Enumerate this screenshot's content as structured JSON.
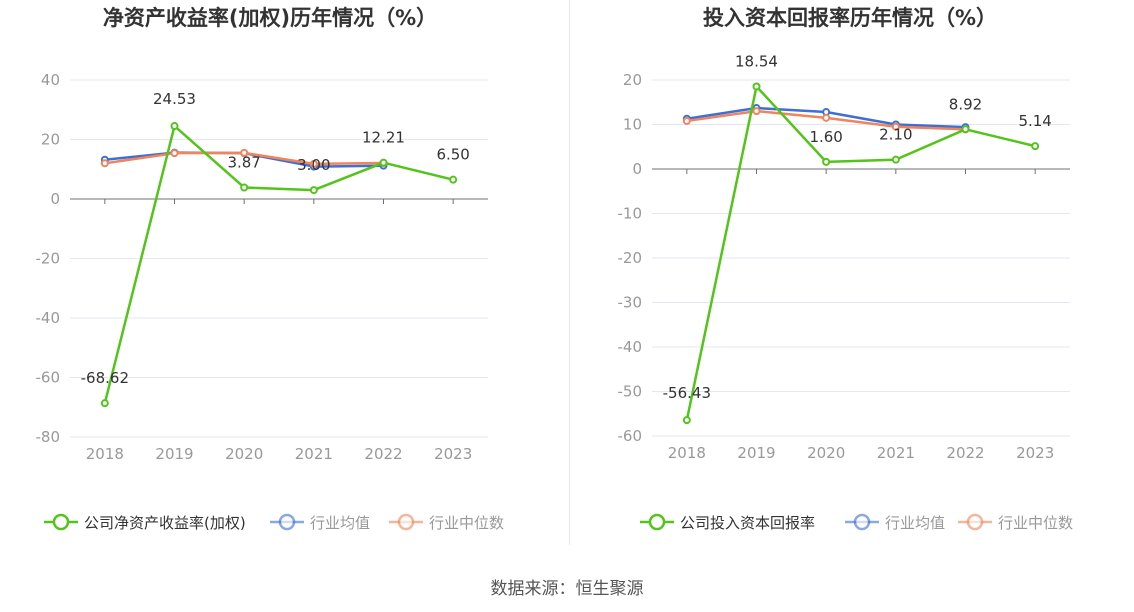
{
  "chart_data": [
    {
      "type": "line",
      "title": "净资产收益率(加权)历年情况（%）",
      "categories": [
        "2018",
        "2019",
        "2020",
        "2021",
        "2022",
        "2023"
      ],
      "y_ticks": [
        "40",
        "20",
        "0",
        "-20",
        "-40",
        "-60",
        "-80"
      ],
      "ylim": [
        -80,
        40
      ],
      "grid": true,
      "legend_position": "bottom",
      "series": [
        {
          "name": "公司净资产收益率(加权)",
          "color": "#52c41a",
          "values": [
            -68.62,
            24.53,
            3.87,
            3.0,
            12.21,
            6.5
          ],
          "labels": [
            "-68.62",
            "24.53",
            "3.87",
            "3.00",
            "12.21",
            "6.50"
          ]
        },
        {
          "name": "行业均值",
          "color": "#3d6fd4",
          "values": [
            13.2,
            15.6,
            15.4,
            10.9,
            11.2,
            null
          ]
        },
        {
          "name": "行业中位数",
          "color": "#f0845c",
          "values": [
            12.0,
            15.4,
            15.5,
            11.8,
            12.1,
            null
          ]
        }
      ]
    },
    {
      "type": "line",
      "title": "投入资本回报率历年情况（%）",
      "categories": [
        "2018",
        "2019",
        "2020",
        "2021",
        "2022",
        "2023"
      ],
      "y_ticks": [
        "20",
        "10",
        "0",
        "-10",
        "-20",
        "-30",
        "-40",
        "-50",
        "-60"
      ],
      "ylim": [
        -60,
        20
      ],
      "grid": true,
      "legend_position": "bottom",
      "series": [
        {
          "name": "公司投入资本回报率",
          "color": "#52c41a",
          "values": [
            -56.43,
            18.54,
            1.6,
            2.1,
            8.92,
            5.14
          ],
          "labels": [
            "-56.43",
            "18.54",
            "1.60",
            "2.10",
            "8.92",
            "5.14"
          ]
        },
        {
          "name": "行业均值",
          "color": "#3d6fd4",
          "values": [
            11.3,
            13.7,
            12.8,
            10.0,
            9.4,
            null
          ]
        },
        {
          "name": "行业中位数",
          "color": "#f0845c",
          "values": [
            10.8,
            13.0,
            11.5,
            9.5,
            8.9,
            null
          ]
        }
      ]
    }
  ],
  "footer": {
    "source": "数据来源：恒生聚源"
  }
}
